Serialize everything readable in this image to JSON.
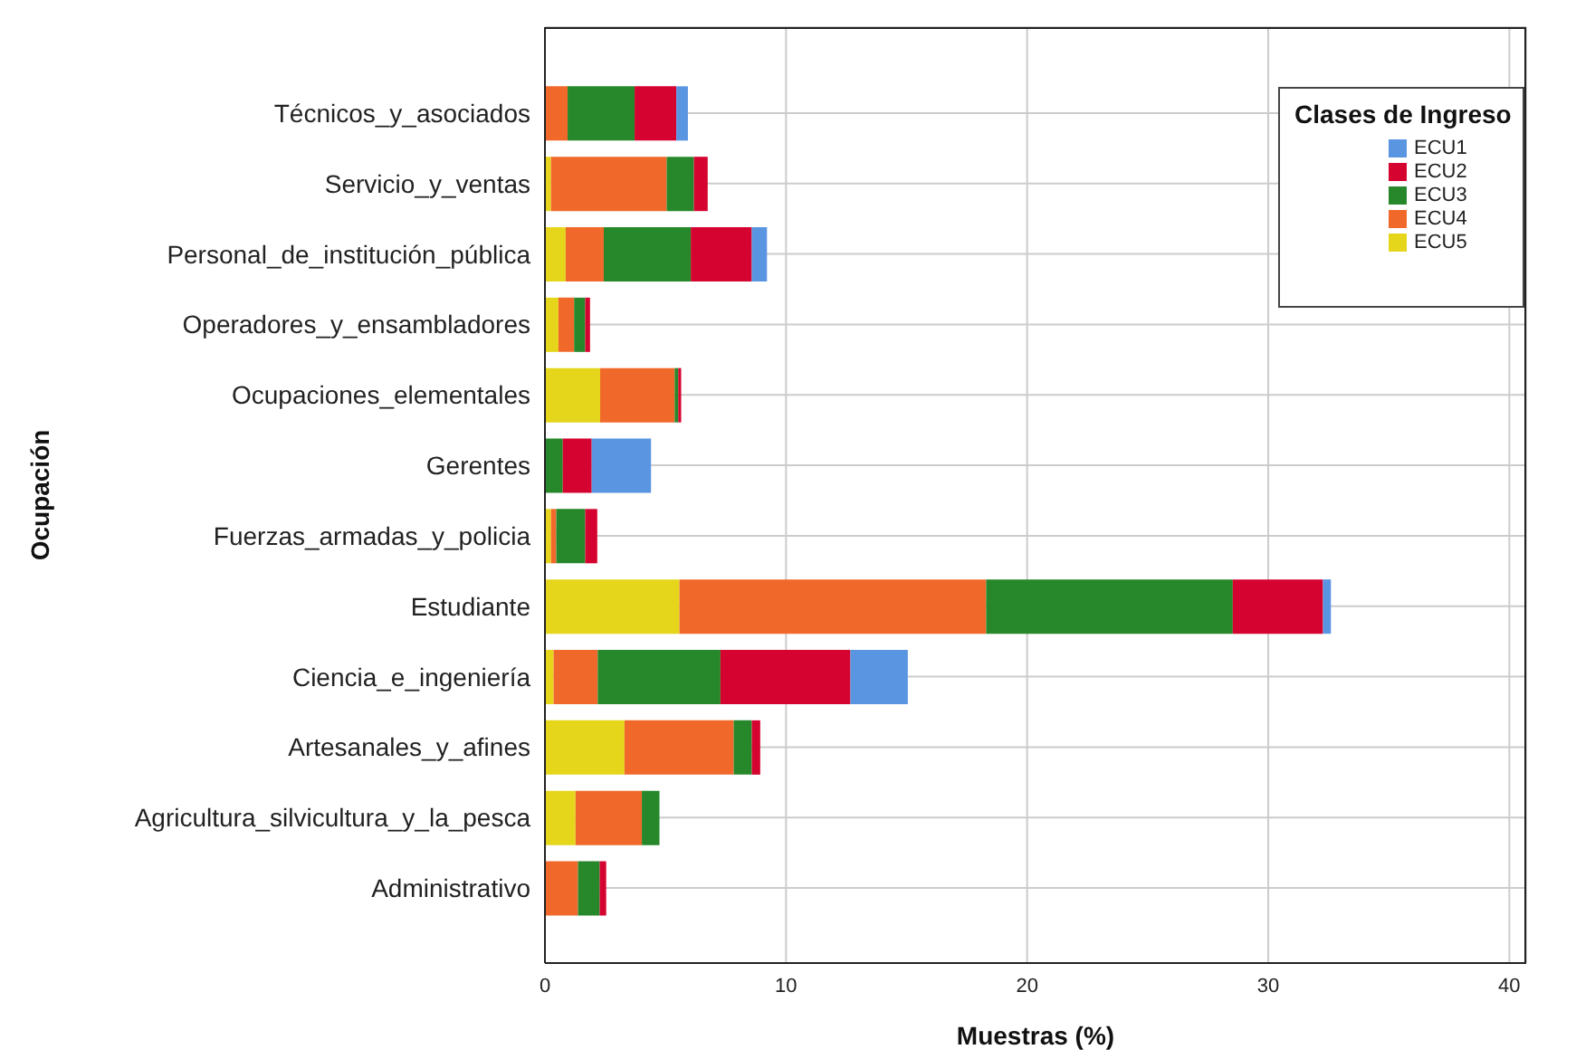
{
  "chart_data": {
    "type": "bar",
    "orientation": "horizontal",
    "stacked": true,
    "xlabel": "Muestras (%)",
    "ylabel": "Ocupación",
    "legend_title": "Clases de Ingreso",
    "categories": [
      "Técnicos_y_asociados",
      "Servicio_y_ventas",
      "Personal_de_institución_pública",
      "Operadores_y_ensambladores",
      "Ocupaciones_elementales",
      "Gerentes",
      "Fuerzas_armadas_y_policia",
      "Estudiante",
      "Ciencia_e_ingeniería",
      "Artesanales_y_afines",
      "Agricultura_silvicultura_y_la_pesca",
      "Administrativo"
    ],
    "series": [
      {
        "name": "ECU5",
        "color": "#e5d61b",
        "values": [
          0,
          0.25,
          0.86,
          0.56,
          2.29,
          0,
          0.25,
          5.58,
          0.36,
          3.3,
          1.27,
          0
        ]
      },
      {
        "name": "ECU4",
        "color": "#f0692a",
        "values": [
          0.94,
          4.8,
          1.58,
          0.65,
          3.09,
          0,
          0.22,
          12.72,
          1.83,
          4.53,
          2.75,
          1.37
        ]
      },
      {
        "name": "ECU3",
        "color": "#26882a",
        "values": [
          2.78,
          1.13,
          3.61,
          0.46,
          0.15,
          0.74,
          1.2,
          10.23,
          5.09,
          0.75,
          0.73,
          0.9
        ]
      },
      {
        "name": "ECU2",
        "color": "#d5032f",
        "values": [
          1.73,
          0.57,
          2.53,
          0.2,
          0.12,
          1.2,
          0.5,
          3.74,
          5.39,
          0.35,
          0,
          0.27
        ]
      },
      {
        "name": "ECU1",
        "color": "#5a95e2",
        "values": [
          0.48,
          0,
          0.63,
          0,
          0,
          2.46,
          0,
          0.33,
          2.38,
          0,
          0,
          0
        ]
      }
    ],
    "xlim": [
      0,
      40.7
    ],
    "xticks": [
      0,
      10,
      20,
      30,
      40
    ],
    "grid": true,
    "legend": "top right"
  }
}
